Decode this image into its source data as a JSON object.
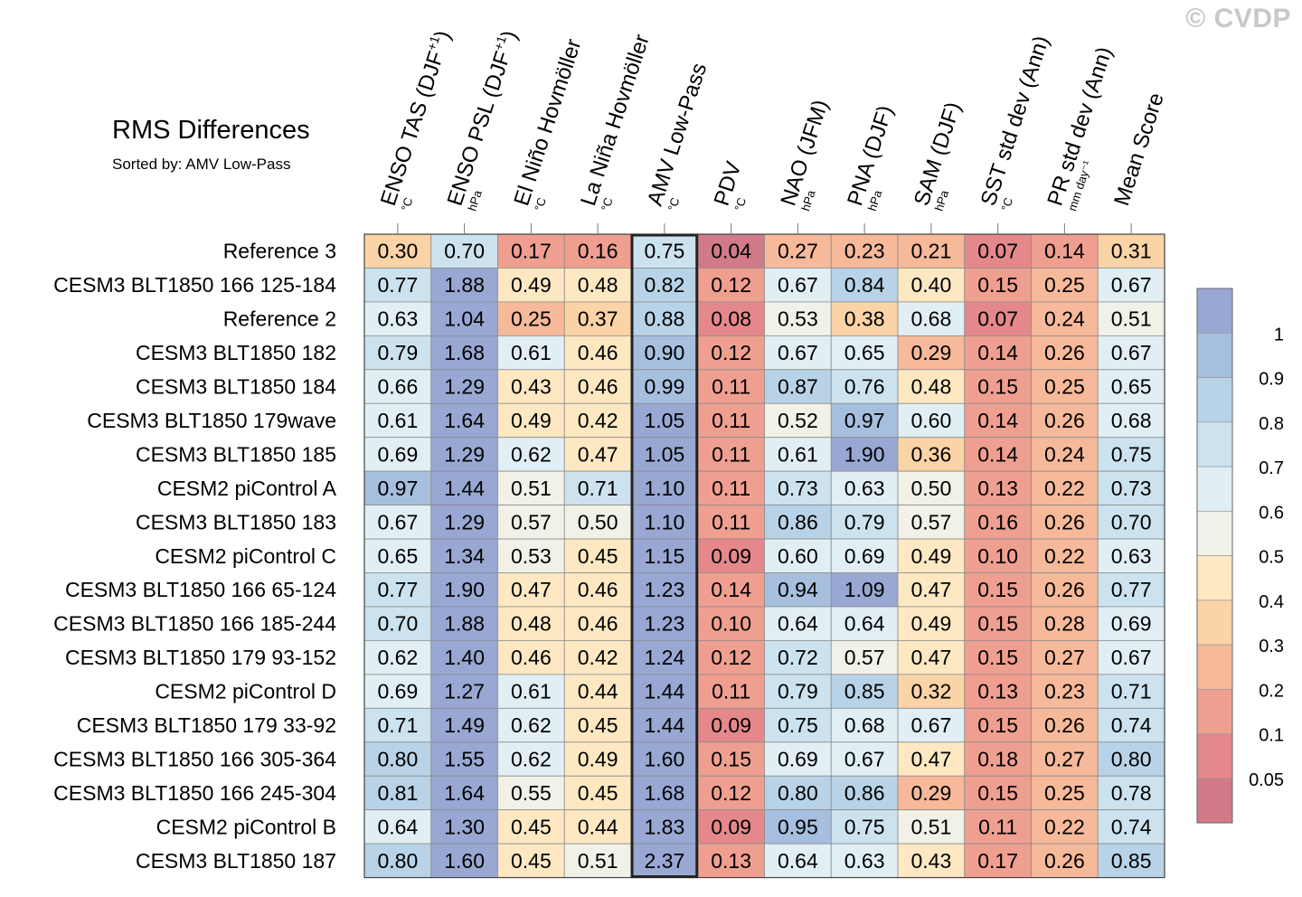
{
  "watermark": "© CVDP",
  "chart_data": {
    "type": "heatmap",
    "title": "RMS Differences",
    "subtitle": "Sorted by: AMV Low-Pass",
    "columns": [
      {
        "label": "ENSO TAS (DJF",
        "sup": "+1",
        "suffix": ")",
        "unit": "°C"
      },
      {
        "label": "ENSO PSL (DJF",
        "sup": "+1",
        "suffix": ")",
        "unit": "hPa"
      },
      {
        "label": "El Niño Hovmöller",
        "sup": "",
        "suffix": "",
        "unit": "°C"
      },
      {
        "label": "La Niña Hovmöller",
        "sup": "",
        "suffix": "",
        "unit": "°C"
      },
      {
        "label": "AMV Low-Pass",
        "sup": "",
        "suffix": "",
        "unit": "°C"
      },
      {
        "label": "PDV",
        "sup": "",
        "suffix": "",
        "unit": "°C"
      },
      {
        "label": "NAO (JFM)",
        "sup": "",
        "suffix": "",
        "unit": "hPa"
      },
      {
        "label": "PNA (DJF)",
        "sup": "",
        "suffix": "",
        "unit": "hPa"
      },
      {
        "label": "SAM (DJF)",
        "sup": "",
        "suffix": "",
        "unit": "hPa"
      },
      {
        "label": "SST std dev (Ann)",
        "sup": "",
        "suffix": "",
        "unit": "°C"
      },
      {
        "label": "PR std dev (Ann)",
        "sup": "",
        "suffix": "",
        "unit": "mm day⁻¹"
      },
      {
        "label": "Mean Score",
        "sup": "",
        "suffix": "",
        "unit": ""
      }
    ],
    "highlight_column": 4,
    "rows": [
      {
        "name": "Reference 3",
        "values": [
          "0.30",
          "0.70",
          "0.17",
          "0.16",
          "0.75",
          "0.04",
          "0.27",
          "0.23",
          "0.21",
          "0.07",
          "0.14",
          "0.31"
        ]
      },
      {
        "name": "CESM3 BLT1850 166 125-184",
        "values": [
          "0.77",
          "1.88",
          "0.49",
          "0.48",
          "0.82",
          "0.12",
          "0.67",
          "0.84",
          "0.40",
          "0.15",
          "0.25",
          "0.67"
        ]
      },
      {
        "name": "Reference 2",
        "values": [
          "0.63",
          "1.04",
          "0.25",
          "0.37",
          "0.88",
          "0.08",
          "0.53",
          "0.38",
          "0.68",
          "0.07",
          "0.24",
          "0.51"
        ]
      },
      {
        "name": "CESM3 BLT1850 182",
        "values": [
          "0.79",
          "1.68",
          "0.61",
          "0.46",
          "0.90",
          "0.12",
          "0.67",
          "0.65",
          "0.29",
          "0.14",
          "0.26",
          "0.67"
        ]
      },
      {
        "name": "CESM3 BLT1850 184",
        "values": [
          "0.66",
          "1.29",
          "0.43",
          "0.46",
          "0.99",
          "0.11",
          "0.87",
          "0.76",
          "0.48",
          "0.15",
          "0.25",
          "0.65"
        ]
      },
      {
        "name": "CESM3 BLT1850 179wave",
        "values": [
          "0.61",
          "1.64",
          "0.49",
          "0.42",
          "1.05",
          "0.11",
          "0.52",
          "0.97",
          "0.60",
          "0.14",
          "0.26",
          "0.68"
        ]
      },
      {
        "name": "CESM3 BLT1850 185",
        "values": [
          "0.69",
          "1.29",
          "0.62",
          "0.47",
          "1.05",
          "0.11",
          "0.61",
          "1.90",
          "0.36",
          "0.14",
          "0.24",
          "0.75"
        ]
      },
      {
        "name": "CESM2 piControl A",
        "values": [
          "0.97",
          "1.44",
          "0.51",
          "0.71",
          "1.10",
          "0.11",
          "0.73",
          "0.63",
          "0.50",
          "0.13",
          "0.22",
          "0.73"
        ]
      },
      {
        "name": "CESM3 BLT1850 183",
        "values": [
          "0.67",
          "1.29",
          "0.57",
          "0.50",
          "1.10",
          "0.11",
          "0.86",
          "0.79",
          "0.57",
          "0.16",
          "0.26",
          "0.70"
        ]
      },
      {
        "name": "CESM2 piControl C",
        "values": [
          "0.65",
          "1.34",
          "0.53",
          "0.45",
          "1.15",
          "0.09",
          "0.60",
          "0.69",
          "0.49",
          "0.10",
          "0.22",
          "0.63"
        ]
      },
      {
        "name": "CESM3 BLT1850 166 65-124",
        "values": [
          "0.77",
          "1.90",
          "0.47",
          "0.46",
          "1.23",
          "0.14",
          "0.94",
          "1.09",
          "0.47",
          "0.15",
          "0.26",
          "0.77"
        ]
      },
      {
        "name": "CESM3 BLT1850 166 185-244",
        "values": [
          "0.70",
          "1.88",
          "0.48",
          "0.46",
          "1.23",
          "0.10",
          "0.64",
          "0.64",
          "0.49",
          "0.15",
          "0.28",
          "0.69"
        ]
      },
      {
        "name": "CESM3 BLT1850 179 93-152",
        "values": [
          "0.62",
          "1.40",
          "0.46",
          "0.42",
          "1.24",
          "0.12",
          "0.72",
          "0.57",
          "0.47",
          "0.15",
          "0.27",
          "0.67"
        ]
      },
      {
        "name": "CESM2 piControl D",
        "values": [
          "0.69",
          "1.27",
          "0.61",
          "0.44",
          "1.44",
          "0.11",
          "0.79",
          "0.85",
          "0.32",
          "0.13",
          "0.23",
          "0.71"
        ]
      },
      {
        "name": "CESM3 BLT1850 179 33-92",
        "values": [
          "0.71",
          "1.49",
          "0.62",
          "0.45",
          "1.44",
          "0.09",
          "0.75",
          "0.68",
          "0.67",
          "0.15",
          "0.26",
          "0.74"
        ]
      },
      {
        "name": "CESM3 BLT1850 166 305-364",
        "values": [
          "0.80",
          "1.55",
          "0.62",
          "0.49",
          "1.60",
          "0.15",
          "0.69",
          "0.67",
          "0.47",
          "0.18",
          "0.27",
          "0.80"
        ]
      },
      {
        "name": "CESM3 BLT1850 166 245-304",
        "values": [
          "0.81",
          "1.64",
          "0.55",
          "0.45",
          "1.68",
          "0.12",
          "0.80",
          "0.86",
          "0.29",
          "0.15",
          "0.25",
          "0.78"
        ]
      },
      {
        "name": "CESM2 piControl B",
        "values": [
          "0.64",
          "1.30",
          "0.45",
          "0.44",
          "1.83",
          "0.09",
          "0.95",
          "0.75",
          "0.51",
          "0.11",
          "0.22",
          "0.74"
        ]
      },
      {
        "name": "CESM3 BLT1850 187",
        "values": [
          "0.80",
          "1.60",
          "0.45",
          "0.51",
          "2.37",
          "0.13",
          "0.64",
          "0.63",
          "0.43",
          "0.17",
          "0.26",
          "0.85"
        ]
      }
    ],
    "colorbar": {
      "bounds": [
        0.05,
        0.1,
        0.2,
        0.3,
        0.4,
        0.5,
        0.6,
        0.7,
        0.8,
        0.9,
        1
      ],
      "tick_labels": [
        "0.05",
        "0.1",
        "0.2",
        "0.3",
        "0.4",
        "0.5",
        "0.6",
        "0.7",
        "0.8",
        "0.9",
        "1"
      ],
      "colors": [
        "#d17a8a",
        "#e4888b",
        "#ef9f90",
        "#f6b99a",
        "#fad3a6",
        "#fde8c2",
        "#f2f1e7",
        "#e1eff5",
        "#cce3ef",
        "#b8d3e7",
        "#a6bfde",
        "#98a8d3"
      ]
    }
  }
}
